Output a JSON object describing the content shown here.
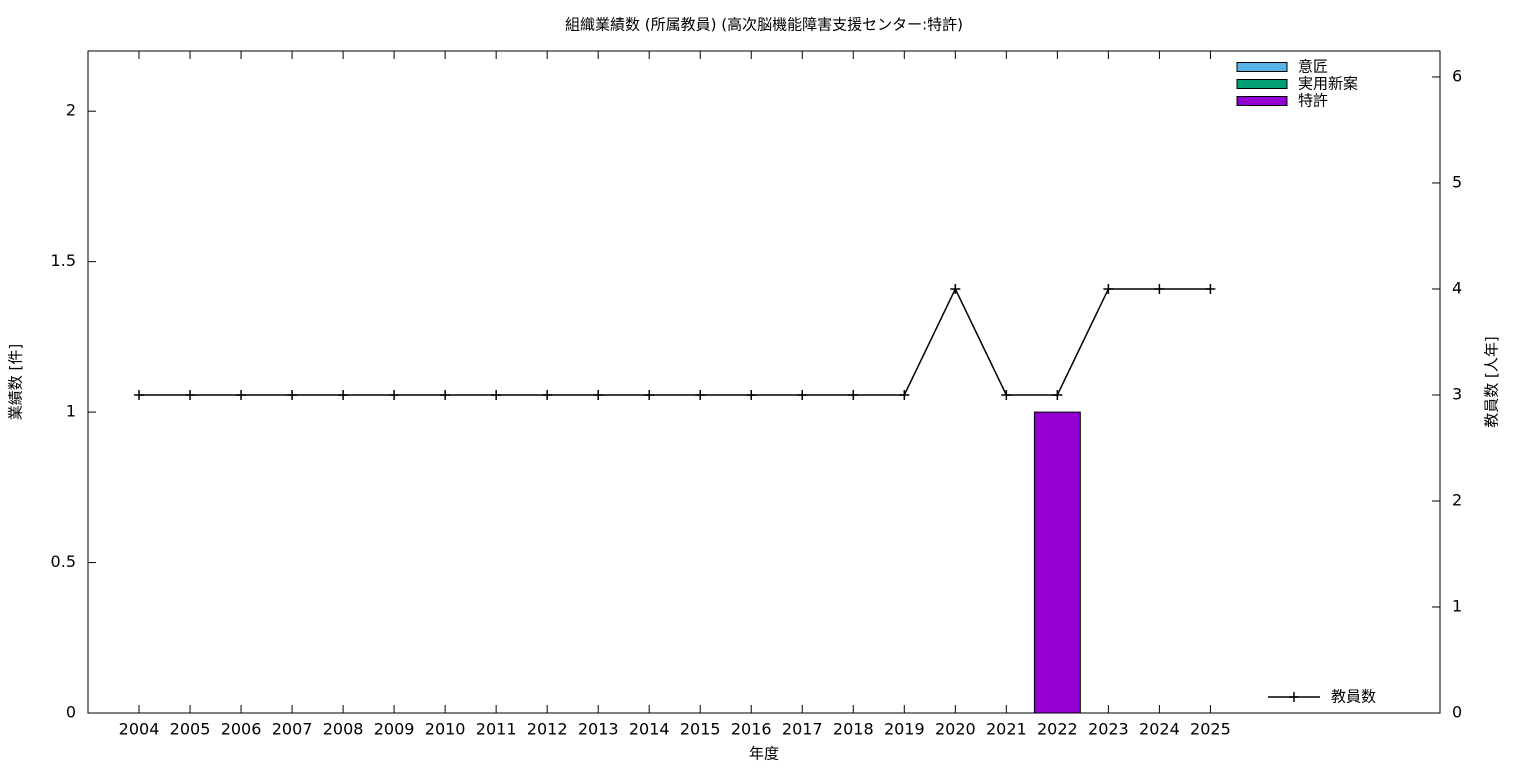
{
  "chart_data": {
    "type": "bar",
    "title": "組織業績数 (所属教員) (高次脳機能障害支援センター:特許)",
    "x_label": "年度",
    "y_label": "業績数 [件]",
    "y2_label": "教員数 [人年]",
    "x": [
      2004,
      2005,
      2006,
      2007,
      2008,
      2009,
      2010,
      2011,
      2012,
      2013,
      2014,
      2015,
      2016,
      2017,
      2018,
      2019,
      2020,
      2021,
      2022,
      2023,
      2024,
      2025
    ],
    "xlim": [
      2003,
      2029.5
    ],
    "xticks": [
      2004,
      2005,
      2006,
      2007,
      2008,
      2009,
      2010,
      2011,
      2012,
      2013,
      2014,
      2015,
      2016,
      2017,
      2018,
      2019,
      2020,
      2021,
      2022,
      2023,
      2024,
      2025
    ],
    "ylim": [
      0,
      2.2
    ],
    "yticks": [
      0,
      0.5,
      1,
      1.5,
      2
    ],
    "y2lim": [
      0,
      6.245
    ],
    "y2ticks": [
      0,
      1,
      2,
      3,
      4,
      5,
      6
    ],
    "series": [
      {
        "name": "意匠",
        "color": "#56b4e9",
        "values": [
          0,
          0,
          0,
          0,
          0,
          0,
          0,
          0,
          0,
          0,
          0,
          0,
          0,
          0,
          0,
          0,
          0,
          0,
          0,
          0,
          0,
          0
        ]
      },
      {
        "name": "実用新案",
        "color": "#009e73",
        "values": [
          0,
          0,
          0,
          0,
          0,
          0,
          0,
          0,
          0,
          0,
          0,
          0,
          0,
          0,
          0,
          0,
          0,
          0,
          0,
          0,
          0,
          0
        ]
      },
      {
        "name": "特許",
        "color": "#9400d3",
        "values": [
          0,
          0,
          0,
          0,
          0,
          0,
          0,
          0,
          0,
          0,
          0,
          0,
          0,
          0,
          0,
          0,
          0,
          0,
          1,
          0,
          0,
          0
        ]
      },
      {
        "name": "教員数",
        "color": "#000000",
        "type": "line",
        "axis": "y2",
        "values": [
          3,
          3,
          3,
          3,
          3,
          3,
          3,
          3,
          3,
          3,
          3,
          3,
          3,
          3,
          3,
          3,
          4,
          3,
          3,
          4,
          4,
          4
        ]
      }
    ]
  }
}
